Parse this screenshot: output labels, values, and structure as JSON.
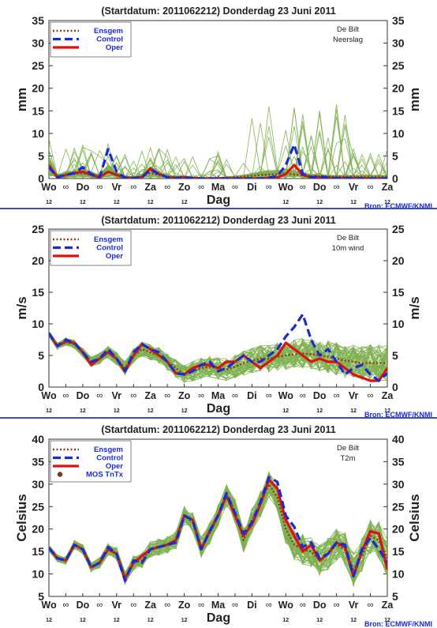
{
  "colors": {
    "ensgem": "#8B3A1A",
    "control": "#1a2bd6",
    "oper": "#e01010",
    "members": "#7fb050",
    "mos": "#7a3a1a",
    "frame": "#3b4fb3",
    "text": "#222222",
    "source": "#1a2bd6"
  },
  "x_axis": {
    "label": "Dag",
    "day_labels": [
      "Wo",
      "Do",
      "Vr",
      "Za",
      "Zo",
      "Ma",
      "Di",
      "Wo",
      "Do",
      "Vr",
      "Za"
    ],
    "mid_symbol": "∞",
    "hour_label": "12"
  },
  "chart_data": [
    {
      "type": "line",
      "title": "(Startdatum: 2011062212)   Donderdag 23 Juni      2011",
      "station": "De Bilt",
      "variable": "Neerslag",
      "ylabel": "mm",
      "ylim": [
        0,
        35
      ],
      "yticks": [
        0,
        5,
        10,
        15,
        20,
        25,
        30,
        35
      ],
      "source": "Bron: ECMWF/KNMI",
      "legend": [
        "Ensgem",
        "Control",
        "Oper"
      ],
      "x": [
        0,
        1,
        2,
        3,
        4,
        5,
        6,
        7,
        8,
        9,
        10,
        11,
        12,
        13,
        14,
        15,
        16,
        17,
        18,
        19,
        20,
        21,
        22,
        23,
        24,
        25,
        26,
        27,
        28,
        29,
        30,
        31,
        32,
        33,
        34,
        35,
        36,
        37,
        38,
        39,
        40
      ],
      "series": [
        {
          "name": "Ensgem",
          "values": [
            2.5,
            0.5,
            0.8,
            1,
            1.2,
            0.8,
            0.5,
            1.5,
            0.8,
            0.3,
            0.2,
            0.5,
            1.2,
            0.8,
            0.4,
            0.3,
            0.3,
            0.2,
            0.1,
            0.1,
            0.1,
            0.2,
            0.3,
            0.4,
            0.6,
            0.8,
            0.9,
            1,
            1.1,
            0.9,
            0.7,
            0.5,
            0.5,
            0.4,
            0.4,
            0.4,
            0.4,
            0.4,
            0.4,
            0.4,
            0.4
          ]
        },
        {
          "name": "Control",
          "values": [
            2.5,
            0.3,
            0.8,
            1.2,
            2.5,
            1,
            0.3,
            6.5,
            1.5,
            0.2,
            0.1,
            0.3,
            2,
            1,
            0.3,
            0.1,
            0.2,
            0.1,
            0,
            0,
            0,
            0,
            0,
            0,
            0,
            0,
            0.2,
            0.5,
            3,
            7.5,
            1,
            0.3,
            0.5,
            0.2,
            0.1,
            0.1,
            0.1,
            0,
            0,
            0,
            0
          ]
        },
        {
          "name": "Oper",
          "values": [
            3,
            0.3,
            0.8,
            1.2,
            1.5,
            0.8,
            0.3,
            1.5,
            0.8,
            0.2,
            0.1,
            0.3,
            2.2,
            1,
            0.3,
            0.1,
            0.3,
            0.1,
            0,
            0,
            0,
            0,
            0,
            0,
            0,
            0,
            0.1,
            0.2,
            1,
            3,
            0.8,
            0.3,
            0.3,
            0.2,
            0.1,
            0.1,
            0.1,
            0.1,
            0,
            0,
            0.1
          ]
        }
      ]
    },
    {
      "type": "line",
      "title": "(Startdatum: 2011062212)   Donderdag 23 Juni      2011",
      "station": "De Bilt",
      "variable": "10m wind",
      "ylabel": "m/s",
      "ylim": [
        0,
        25
      ],
      "yticks": [
        0,
        5,
        10,
        15,
        20,
        25
      ],
      "source": "Bron: ECMWF/KNMI",
      "legend": [
        "Ensgem",
        "Control",
        "Oper"
      ],
      "x": [
        0,
        1,
        2,
        3,
        4,
        5,
        6,
        7,
        8,
        9,
        10,
        11,
        12,
        13,
        14,
        15,
        16,
        17,
        18,
        19,
        20,
        21,
        22,
        23,
        24,
        25,
        26,
        27,
        28,
        29,
        30,
        31,
        32,
        33,
        34,
        35,
        36,
        37,
        38,
        39,
        40
      ],
      "series": [
        {
          "name": "Ensgem",
          "values": [
            8.5,
            6.5,
            7.2,
            6.8,
            5.5,
            4,
            4.5,
            5.5,
            4.5,
            3,
            5,
            6,
            5.5,
            5,
            4,
            3,
            2,
            2.5,
            3,
            3.2,
            3,
            2.8,
            3.2,
            3.8,
            4.2,
            4.5,
            4.5,
            4.8,
            5,
            5.2,
            5.3,
            5.2,
            5,
            4.8,
            4.5,
            4.2,
            4,
            3.8,
            3.8,
            3.8,
            3.8
          ]
        },
        {
          "name": "Control",
          "values": [
            8.5,
            6.5,
            7.5,
            7,
            5.5,
            4,
            4.5,
            6,
            4.5,
            2.5,
            5.5,
            6.8,
            6,
            5.5,
            4,
            2.2,
            2,
            2.5,
            3.5,
            4,
            2.5,
            3,
            4,
            5,
            4,
            4,
            5,
            6,
            8,
            9.5,
            11.5,
            7.5,
            5,
            6,
            4,
            2,
            3,
            3.5,
            2,
            1,
            2.2
          ]
        },
        {
          "name": "Oper",
          "values": [
            8.5,
            6.5,
            7.2,
            7,
            5.5,
            3.5,
            4.5,
            5.5,
            4.5,
            2.5,
            5,
            6.8,
            6,
            5,
            4,
            2.2,
            2,
            3,
            3.5,
            3.5,
            3,
            4,
            4,
            5,
            4,
            3,
            4,
            5,
            7,
            6,
            5,
            4,
            4.5,
            4,
            4,
            3,
            2,
            1.5,
            1,
            1,
            3
          ]
        }
      ]
    },
    {
      "type": "line",
      "title": "(Startdatum: 2011062212)   Donderdag 23 Juni      2011",
      "station": "De Bilt",
      "variable": "T2m",
      "ylabel": "Celsius",
      "ylim": [
        5,
        40
      ],
      "yticks": [
        5,
        10,
        15,
        20,
        25,
        30,
        35,
        40
      ],
      "source": "Bron: ECMWF/KNMI",
      "legend": [
        "Ensgem",
        "Control",
        "Oper",
        "MOS TnTx"
      ],
      "x": [
        0,
        1,
        2,
        3,
        4,
        5,
        6,
        7,
        8,
        9,
        10,
        11,
        12,
        13,
        14,
        15,
        16,
        17,
        18,
        19,
        20,
        21,
        22,
        23,
        24,
        25,
        26,
        27,
        28,
        29,
        30,
        31,
        32,
        33,
        34,
        35,
        36,
        37,
        38,
        39,
        40
      ],
      "series": [
        {
          "name": "Ensgem",
          "values": [
            15.8,
            13.5,
            13,
            16.5,
            15.5,
            11.5,
            12.5,
            15.5,
            14.5,
            9,
            12.5,
            13,
            15.5,
            16,
            16.5,
            17.5,
            23,
            21.5,
            16,
            19,
            23,
            27.5,
            24,
            17.5,
            22,
            25.5,
            30,
            27,
            20,
            16.5,
            15.5,
            15,
            13,
            14.5,
            16.5,
            15.5,
            11,
            14,
            18.5,
            17.5,
            13.5
          ]
        },
        {
          "name": "Control",
          "values": [
            15.8,
            13.5,
            13,
            16.5,
            15.5,
            11.5,
            12.5,
            16,
            14.5,
            8.5,
            13,
            12.5,
            15.5,
            16,
            16.5,
            17,
            23,
            22,
            15.5,
            19.5,
            23,
            28,
            23.5,
            19,
            21.5,
            26,
            31.5,
            30.5,
            23,
            20.5,
            16,
            17,
            13.5,
            14.5,
            17,
            16.5,
            9.5,
            15.5,
            18,
            15.5,
            12.5
          ]
        },
        {
          "name": "Oper",
          "values": [
            15.8,
            13.5,
            13,
            16.5,
            15.5,
            11.5,
            12.5,
            15.5,
            14.5,
            9,
            12.5,
            14,
            15.5,
            16,
            16.5,
            17.5,
            23,
            22,
            15.5,
            19.5,
            23,
            27.5,
            23,
            18.5,
            21,
            25.5,
            31,
            29,
            22,
            18.5,
            15,
            16.5,
            13,
            14.5,
            17,
            16,
            9.5,
            15,
            19.5,
            19,
            11
          ]
        }
      ]
    }
  ]
}
